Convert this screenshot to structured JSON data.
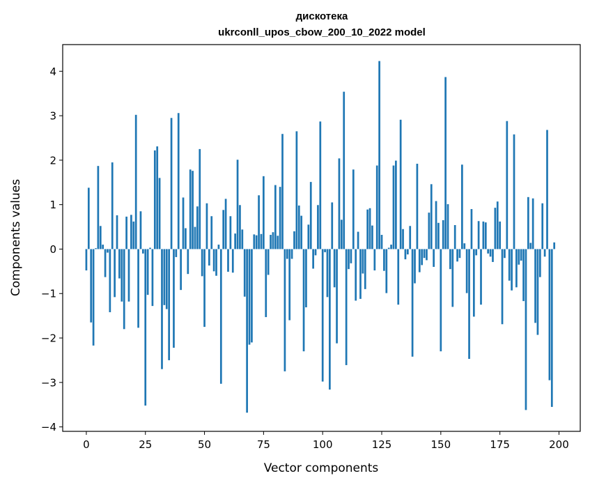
{
  "chart_data": {
    "type": "bar",
    "title_line1": "дискотека",
    "title_line2": "ukrconll_upos_cbow_200_10_2022 model",
    "xlabel": "Vector components",
    "ylabel": "Components values",
    "xlim": [
      -10,
      209
    ],
    "ylim": [
      -4.1,
      4.6
    ],
    "xticks": [
      0,
      25,
      50,
      75,
      100,
      125,
      150,
      175,
      200
    ],
    "yticks": [
      -4,
      -3,
      -2,
      -1,
      0,
      1,
      2,
      3,
      4
    ],
    "grid": false,
    "color": "#1f77b4",
    "values": [
      -0.48,
      1.38,
      -1.65,
      -2.17,
      0.02,
      1.87,
      0.52,
      0.1,
      -0.63,
      -0.08,
      -1.42,
      1.95,
      -1.08,
      0.76,
      -0.66,
      -1.18,
      -1.8,
      0.73,
      -1.18,
      0.77,
      0.62,
      3.02,
      -1.77,
      0.85,
      -0.1,
      -3.52,
      -1.03,
      0.03,
      -1.28,
      2.22,
      2.31,
      1.6,
      -2.7,
      -1.26,
      -1.35,
      -2.5,
      2.95,
      -2.22,
      -0.18,
      3.06,
      -0.92,
      1.16,
      0.47,
      -0.56,
      1.79,
      1.76,
      0.5,
      0.96,
      2.25,
      -0.61,
      -1.75,
      1.03,
      -0.37,
      0.74,
      -0.5,
      -0.6,
      0.1,
      -3.03,
      0.88,
      1.13,
      -0.51,
      0.74,
      -0.53,
      0.35,
      2.01,
      0.99,
      0.44,
      -1.07,
      -3.68,
      -2.15,
      -2.1,
      0.33,
      0.31,
      1.21,
      0.34,
      1.64,
      -1.53,
      -0.58,
      0.32,
      0.38,
      1.44,
      0.3,
      1.4,
      2.59,
      -2.75,
      -0.22,
      -1.6,
      -0.22,
      0.4,
      2.65,
      0.98,
      0.75,
      -2.3,
      -1.31,
      0.55,
      1.51,
      -0.44,
      -0.14,
      0.99,
      2.87,
      -2.98,
      -0.07,
      -1.08,
      -3.16,
      1.05,
      -0.86,
      -2.12,
      2.04,
      0.66,
      3.54,
      -2.61,
      -0.45,
      -0.32,
      1.79,
      -1.16,
      0.39,
      -1.12,
      -0.55,
      -0.9,
      0.89,
      0.92,
      0.53,
      -0.48,
      1.88,
      4.23,
      0.32,
      -0.49,
      -0.99,
      0.03,
      0.1,
      1.88,
      1.99,
      -1.25,
      2.91,
      0.45,
      -0.23,
      -0.12,
      0.52,
      -2.42,
      -0.77,
      1.92,
      -0.52,
      -0.36,
      -0.2,
      -0.25,
      0.82,
      1.46,
      -0.4,
      1.08,
      0.59,
      -2.3,
      0.65,
      3.87,
      1.01,
      -0.45,
      -1.3,
      0.54,
      -0.28,
      -0.2,
      1.9,
      0.13,
      -0.99,
      -2.47,
      0.9,
      -1.52,
      -0.14,
      0.63,
      -1.25,
      0.62,
      0.6,
      -0.1,
      -0.17,
      -0.29,
      0.93,
      1.07,
      0.62,
      -1.69,
      -0.2,
      2.88,
      -0.71,
      -0.93,
      2.58,
      -0.86,
      -0.35,
      -0.26,
      -1.17,
      -3.62,
      1.17,
      0.14,
      1.14,
      -1.66,
      -1.93,
      -0.63,
      1.03,
      -0.17,
      2.68,
      -2.95,
      -3.55,
      0.15
    ]
  }
}
